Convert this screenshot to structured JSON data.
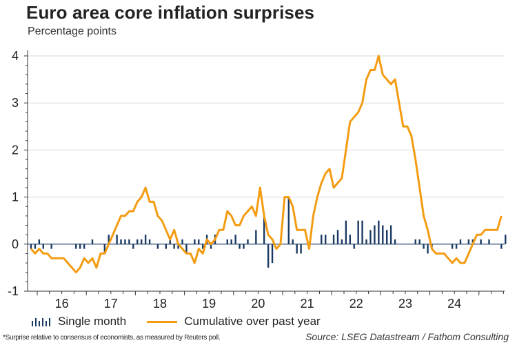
{
  "chart_data": {
    "type": "bar+line",
    "title": "Euro area core inflation surprises",
    "subtitle": "Percentage points",
    "xlabel": "",
    "ylabel": "Percentage points",
    "ylim": [
      -1,
      4
    ],
    "yticks": [
      -1,
      0,
      1,
      2,
      3,
      4
    ],
    "grid": true,
    "x_tick_labels": [
      "16",
      "17",
      "18",
      "19",
      "20",
      "21",
      "22",
      "23",
      "24"
    ],
    "x_start": "2015-11",
    "x_frequency": "monthly",
    "legend_position": "bottom",
    "series": [
      {
        "name": "Single month",
        "type": "bar",
        "color": "#1a3a63",
        "values": [
          -0.1,
          -0.1,
          0.1,
          -0.1,
          0,
          -0.1,
          0,
          0,
          0,
          0,
          0,
          -0.1,
          -0.1,
          -0.1,
          0,
          0.1,
          0,
          0,
          -0.2,
          0.2,
          0,
          0.2,
          0.1,
          0.1,
          0.1,
          -0.1,
          0.1,
          0.1,
          0.2,
          0.1,
          0,
          -0.1,
          0,
          -0.1,
          0.1,
          -0.1,
          -0.1,
          0.1,
          -0.2,
          0,
          0.1,
          0.1,
          -0.1,
          0.2,
          -0.1,
          0.2,
          0,
          0,
          0.1,
          0.1,
          0.2,
          -0.1,
          -0.1,
          0.1,
          0,
          0.3,
          0,
          0.6,
          -0.5,
          -0.4,
          0,
          0,
          0,
          1.0,
          0.1,
          -0.2,
          -0.2,
          0,
          0,
          0,
          0,
          0.2,
          0.2,
          0,
          0.2,
          0.3,
          0.1,
          0.5,
          0.2,
          -0.1,
          0.5,
          0.5,
          0.1,
          0.3,
          0.4,
          0.5,
          0.4,
          0.3,
          0.4,
          0.1,
          0,
          0,
          0,
          0,
          0.1,
          0.1,
          -0.1,
          -0.2,
          -0.1,
          0,
          0,
          0,
          0,
          -0.1,
          -0.1,
          0.1,
          0,
          0.1,
          0.1,
          0,
          0.1,
          0,
          0.1,
          0,
          0,
          -0.1,
          0.2
        ]
      },
      {
        "name": "Cumulative over past year",
        "type": "line",
        "color": "#f39c12",
        "values": [
          -0.1,
          -0.2,
          -0.1,
          -0.2,
          -0.2,
          -0.3,
          -0.3,
          -0.3,
          -0.3,
          -0.4,
          -0.5,
          -0.6,
          -0.5,
          -0.3,
          -0.4,
          -0.3,
          -0.5,
          -0.2,
          -0.2,
          0,
          0.2,
          0.4,
          0.6,
          0.6,
          0.7,
          0.7,
          0.9,
          1.0,
          1.2,
          0.9,
          0.9,
          0.6,
          0.5,
          0.3,
          0.1,
          0.3,
          0,
          -0.1,
          -0.2,
          -0.2,
          -0.4,
          -0.1,
          -0.2,
          0.1,
          0,
          0.1,
          0.3,
          0.3,
          0.7,
          0.6,
          0.4,
          0.4,
          0.6,
          0.7,
          0.8,
          0.6,
          1.2,
          0.6,
          0.2,
          0.1,
          -0.1,
          0,
          1.0,
          1.0,
          0.8,
          0.3,
          0.3,
          0.3,
          -0.1,
          0.6,
          1.0,
          1.3,
          1.5,
          1.6,
          1.2,
          1.3,
          1.4,
          2.0,
          2.6,
          2.7,
          2.8,
          3.0,
          3.5,
          3.7,
          3.7,
          4.0,
          3.6,
          3.5,
          3.4,
          3.5,
          3.0,
          2.5,
          2.5,
          2.3,
          1.8,
          1.2,
          0.6,
          0.3,
          -0.1,
          -0.2,
          -0.2,
          -0.2,
          -0.3,
          -0.4,
          -0.3,
          -0.4,
          -0.4,
          -0.2,
          0,
          0.2,
          0.2,
          0.3,
          0.3,
          0.3,
          0.3,
          0.6
        ]
      }
    ]
  },
  "legend": {
    "bar_label": "Single month",
    "line_label": "Cumulative over past year"
  },
  "footnote": "*Surprise relative to consensus of economists, as measured by Reuters poll.",
  "source": "Source: LSEG Datastream / Fathom Consulting"
}
